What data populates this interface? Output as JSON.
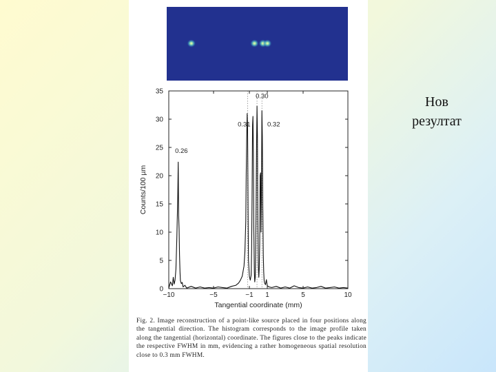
{
  "slide": {
    "title_lines": [
      "Нов",
      "резултат"
    ],
    "background_colors": [
      "#fffbd0",
      "#c9e6fb"
    ]
  },
  "figure": {
    "image_background": "#22318f",
    "caption": "Fig. 2. Image reconstruction of a point-like source placed in four positions along the tangential direction. The histogram corresponds to the image profile taken along the tangential (horizontal) coordinate. The figures close to the peaks indicate the respective FWHM in mm, evidencing a rather homogeneous spatial resolution close to 0.3 mm FWHM."
  },
  "chart_data": {
    "type": "line",
    "title": "",
    "xlabel": "Tangential coordinate (mm)",
    "ylabel": "Counts/100 µm",
    "xlim": [
      -10,
      10
    ],
    "ylim": [
      0,
      35
    ],
    "xticks": [
      -10,
      -5,
      -1,
      1,
      5,
      10
    ],
    "yticks": [
      0,
      5,
      10,
      15,
      20,
      25,
      30,
      35
    ],
    "grid": false,
    "series": [
      {
        "x": [
          -10.0,
          -9.8,
          -9.6,
          -9.5,
          -9.4,
          -9.3,
          -9.2,
          -9.1,
          -9.0,
          -8.95,
          -8.9,
          -8.85,
          -8.8,
          -8.75,
          -8.7,
          -8.6,
          -8.5,
          -8.4,
          -8.2,
          -8.0,
          -7.5,
          -7.0,
          -6.5,
          -6.0,
          -5.5,
          -5.0,
          -4.5,
          -4.0,
          -3.5,
          -3.0,
          -2.5,
          -2.2,
          -2.0,
          -1.8,
          -1.6,
          -1.5,
          -1.4,
          -1.35,
          -1.3,
          -1.25,
          -1.2,
          -1.15,
          -1.1,
          -1.0,
          -0.9,
          -0.8,
          -0.75,
          -0.7,
          -0.65,
          -0.6,
          -0.55,
          -0.5,
          -0.45,
          -0.4,
          -0.35,
          -0.3,
          -0.25,
          -0.2,
          -0.15,
          -0.1,
          -0.05,
          0.0,
          0.05,
          0.1,
          0.15,
          0.2,
          0.25,
          0.3,
          0.35,
          0.4,
          0.45,
          0.5,
          0.55,
          0.6,
          0.65,
          0.7,
          0.8,
          0.9,
          1.0,
          1.2,
          1.5,
          2.0,
          2.5,
          3.0,
          3.5,
          4.0,
          4.5,
          5.0,
          5.5,
          6.0,
          6.5,
          7.0,
          7.5,
          8.0,
          8.5,
          9.0,
          9.5,
          10.0
        ],
        "y": [
          0.1,
          1.2,
          0.5,
          2.0,
          0.8,
          1.5,
          3.5,
          9.0,
          16.0,
          22.4,
          13.0,
          10.5,
          6.0,
          3.0,
          1.4,
          0.9,
          1.1,
          0.3,
          0.6,
          0.1,
          0.4,
          0.1,
          0.3,
          0.1,
          0.2,
          0.1,
          0.3,
          0.2,
          0.1,
          0.4,
          0.6,
          1.0,
          1.5,
          2.2,
          4.0,
          6.5,
          12.0,
          20.0,
          26.5,
          31.0,
          28.5,
          14.0,
          5.0,
          2.2,
          1.5,
          2.4,
          7.0,
          16.0,
          29.0,
          30.5,
          24.0,
          10.0,
          3.0,
          1.2,
          2.0,
          6.0,
          15.0,
          25.0,
          32.3,
          27.0,
          12.0,
          4.0,
          2.0,
          3.5,
          8.0,
          20.0,
          20.5,
          10.0,
          16.0,
          31.5,
          27.0,
          14.0,
          6.0,
          3.0,
          1.5,
          1.0,
          0.7,
          1.6,
          0.5,
          0.3,
          0.2,
          0.4,
          0.1,
          0.3,
          0.1,
          0.5,
          0.2,
          0.1,
          0.3,
          0.1,
          0.2,
          0.4,
          0.1,
          0.2,
          0.3,
          0.1,
          0.2,
          0.1
        ]
      }
    ],
    "annotations": [
      {
        "text": "0.26",
        "x": -9.3,
        "y": 24.0
      },
      {
        "text": "0.31",
        "x": -2.3,
        "y": 28.7
      },
      {
        "text": "0.30",
        "x": -0.3,
        "y": 33.7
      },
      {
        "text": "0.32",
        "x": 1.0,
        "y": 28.7
      }
    ],
    "vertical_markers": [
      -1.2,
      -0.15,
      0.4
    ],
    "source_spots": [
      -9.0,
      -1.2,
      -0.15,
      0.4
    ]
  }
}
